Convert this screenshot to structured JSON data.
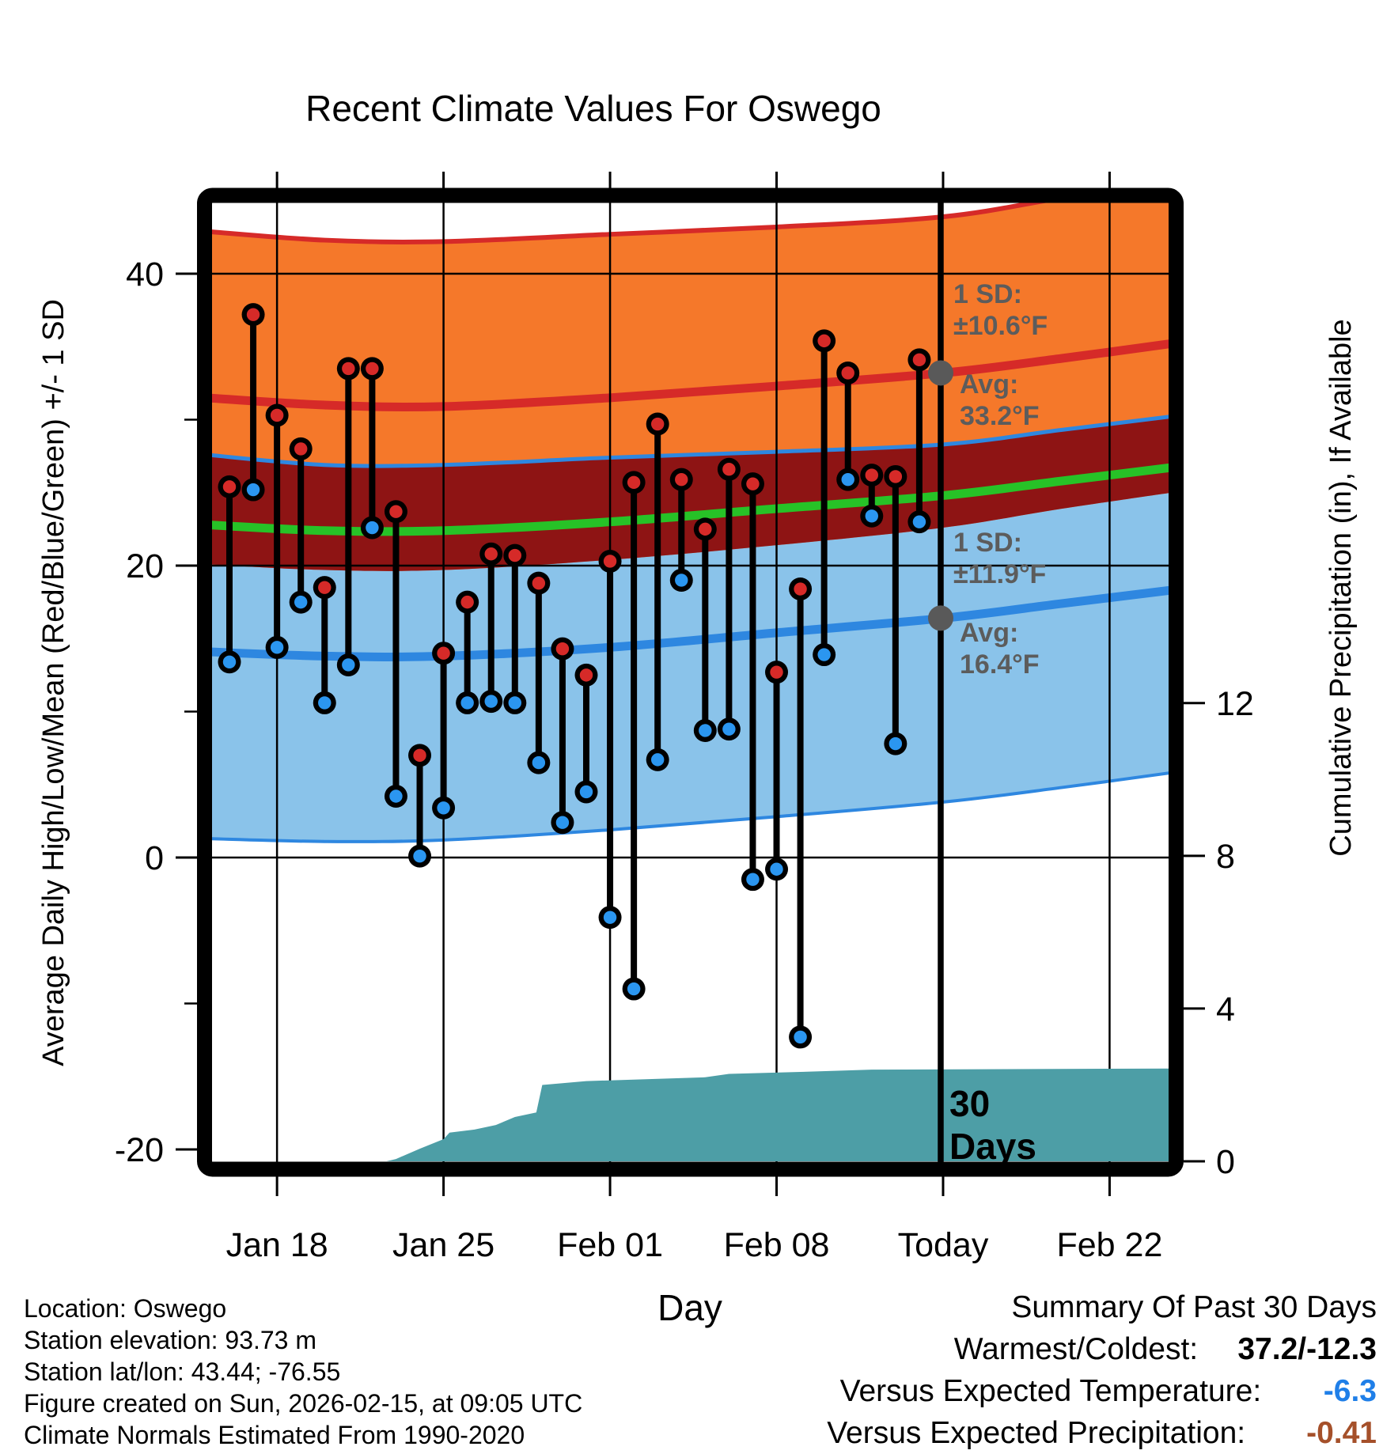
{
  "title": "Recent Climate Values For Oswego",
  "axes": {
    "x_label": "Day",
    "x_ticks": [
      "Jan 18",
      "Jan 25",
      "Feb 01",
      "Feb 08",
      "Today",
      "Feb 22"
    ],
    "y_left_label": "Average Daily High/Low/Mean (Red/Blue/Green) +/- 1 SD",
    "y_left_ticks": [
      "40",
      "20",
      "0",
      "-20"
    ],
    "y_right_label": "Cumulative Precipitation (in), If Available",
    "y_right_ticks": [
      "12",
      "8",
      "4",
      "0"
    ]
  },
  "annotations": {
    "high_sd": {
      "line1": "1 SD:",
      "line2": "±10.6°F"
    },
    "high_avg": {
      "line1": "Avg:",
      "line2": "33.2°F"
    },
    "low_sd": {
      "line1": "1 SD:",
      "line2": "±11.9°F"
    },
    "low_avg": {
      "line1": "Avg:",
      "line2": "16.4°F"
    },
    "period": {
      "line1": "30",
      "line2": "Days"
    }
  },
  "footer": {
    "lines": [
      "Location: Oswego",
      "Station elevation: 93.73 m",
      "Station lat/lon: 43.44; -76.55",
      "Figure created on Sun, 2026-02-15, at 09:05 UTC",
      "Climate Normals Estimated From 1990-2020"
    ]
  },
  "summary": {
    "title": "Summary Of Past 30 Days",
    "rows": [
      {
        "label": "Warmest/Coldest:",
        "value": "37.2/-12.3",
        "color": "#000000"
      },
      {
        "label": "Versus Expected Temperature:",
        "value": "-6.3",
        "color": "#1f7fe8"
      },
      {
        "label": "Versus Expected Precipitation:",
        "value": "-0.41",
        "color": "#a5502a"
      }
    ]
  },
  "colors": {
    "high_band": "#f5782a",
    "overlap_band": "#8e1414",
    "low_band": "#8ac3ea",
    "high_line": "#d62a28",
    "mean_line": "#27c227",
    "low_line": "#2e87e0",
    "precip_fill": "#4d9ea6",
    "dot_high": "#d62a28",
    "dot_low": "#2b96f0",
    "stem": "#000000",
    "marker_gray": "#595959",
    "grid": "#000000",
    "frame": "#000000"
  },
  "chart_data": {
    "type": "combo",
    "title": "Recent Climate Values For Oswego",
    "xlabel": "Day",
    "ylabel_left": "Average Daily High/Low/Mean (Red/Blue/Green) +/- 1 SD",
    "ylabel_right": "Cumulative Precipitation (in), If Available",
    "y_left_ticks": [
      40,
      20,
      0,
      -20
    ],
    "y_left_minor_ticks": [
      30,
      10,
      -10
    ],
    "y_left_range": [
      -20.8,
      44.8
    ],
    "y_right_ticks": [
      12,
      8,
      4,
      0
    ],
    "x_tick_days": [
      2,
      9,
      16,
      23,
      30,
      37
    ],
    "x_tick_labels": [
      "Jan 18",
      "Jan 25",
      "Feb 01",
      "Feb 08",
      "Today",
      "Feb 22"
    ],
    "today_day": 30,
    "grid": true,
    "daily": {
      "dates": [
        "Jan 16",
        "Jan 17",
        "Jan 18",
        "Jan 19",
        "Jan 20",
        "Jan 21",
        "Jan 22",
        "Jan 23",
        "Jan 24",
        "Jan 25",
        "Jan 26",
        "Jan 27",
        "Jan 28",
        "Jan 29",
        "Jan 30",
        "Jan 31",
        "Feb 01",
        "Feb 02",
        "Feb 03",
        "Feb 04",
        "Feb 05",
        "Feb 06",
        "Feb 07",
        "Feb 08",
        "Feb 09",
        "Feb 10",
        "Feb 11",
        "Feb 12",
        "Feb 13",
        "Feb 14"
      ],
      "high_f": [
        25.4,
        37.2,
        30.3,
        28.0,
        18.5,
        33.5,
        33.5,
        23.7,
        7.0,
        14.0,
        17.5,
        20.8,
        20.7,
        18.8,
        14.3,
        12.5,
        20.3,
        25.7,
        29.7,
        25.9,
        22.5,
        26.6,
        25.6,
        12.7,
        18.4,
        35.4,
        33.2,
        26.2,
        26.1,
        34.1
      ],
      "low_f": [
        13.4,
        25.2,
        14.4,
        17.5,
        10.6,
        13.2,
        22.6,
        4.2,
        0.1,
        3.4,
        10.6,
        10.7,
        10.6,
        6.5,
        2.4,
        4.5,
        -4.1,
        -9.0,
        6.7,
        19.0,
        8.7,
        8.8,
        -1.5,
        -0.8,
        -12.3,
        13.9,
        25.9,
        23.4,
        7.8,
        23.0
      ]
    },
    "normals": {
      "source": "Climate Normals Estimated From 1990-2020",
      "at_today": {
        "high_avg_f": 33.2,
        "high_sd_f": 10.6,
        "low_avg_f": 16.4,
        "low_sd_f": 11.9
      },
      "curve_days": [
        -1,
        4,
        9,
        16,
        23,
        30,
        35,
        40
      ],
      "avg_high": [
        31.5,
        31.0,
        30.9,
        31.5,
        32.3,
        33.2,
        34.2,
        35.3
      ],
      "avg_mean": [
        22.8,
        22.4,
        22.4,
        23.0,
        23.9,
        24.8,
        25.8,
        26.8
      ],
      "avg_low": [
        14.1,
        13.8,
        13.8,
        14.4,
        15.4,
        16.4,
        17.4,
        18.4
      ],
      "high_plus_sd": [
        42.9,
        42.3,
        42.2,
        42.7,
        43.2,
        43.9,
        45.2,
        46.5
      ],
      "high_minus_sd": [
        20.1,
        19.7,
        19.7,
        20.4,
        21.4,
        22.6,
        23.9,
        25.1
      ],
      "low_plus_sd": [
        27.6,
        26.9,
        26.9,
        27.4,
        27.8,
        28.3,
        29.3,
        30.3
      ],
      "low_minus_sd": [
        1.3,
        1.1,
        1.2,
        1.9,
        2.8,
        3.8,
        4.8,
        5.9
      ]
    },
    "cumulative_precip_in": {
      "points_day_value": [
        [
          6.6,
          0.0
        ],
        [
          7.0,
          0.06
        ],
        [
          8.0,
          0.33
        ],
        [
          9.0,
          0.58
        ],
        [
          9.25,
          0.75
        ],
        [
          10.3,
          0.83
        ],
        [
          11.2,
          0.95
        ],
        [
          12.0,
          1.16
        ],
        [
          12.9,
          1.28
        ],
        [
          13.15,
          2.0
        ],
        [
          15.0,
          2.1
        ],
        [
          20.0,
          2.2
        ],
        [
          21.0,
          2.29
        ],
        [
          24.0,
          2.34
        ],
        [
          27.0,
          2.4
        ],
        [
          40.0,
          2.43
        ]
      ]
    },
    "summary_stats": {
      "warmest_f": 37.2,
      "coldest_f": -12.3,
      "vs_expected_temp_f": -6.3,
      "vs_expected_precip_in": -0.41
    }
  }
}
